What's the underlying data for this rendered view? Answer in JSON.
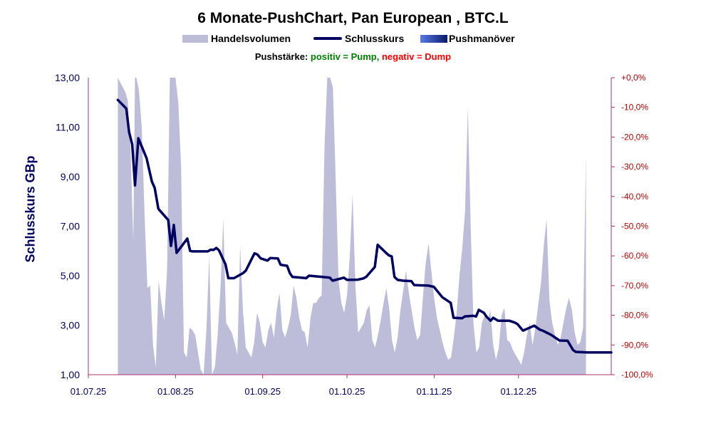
{
  "chart_data": {
    "type": "line",
    "title": "6 Monate-PushChart, Pan European , BTC.L",
    "legend": {
      "volume": "Handelsvolumen",
      "close": "Schlusskurs",
      "push": "Pushmanöver"
    },
    "push_note": {
      "label": "Pushstärke:",
      "positive": "positiv = Pump,",
      "negative": "negativ = Dump"
    },
    "ylabel": "Schlusskurs GBp",
    "ylim": [
      1,
      13
    ],
    "y_ticks": [
      "13,00",
      "11,00",
      "9,00",
      "7,00",
      "5,00",
      "3,00",
      "1,00"
    ],
    "y2lim": [
      -100,
      0
    ],
    "y2_ticks": [
      "+0,0%",
      "-10,0%",
      "-20,0%",
      "-30,0%",
      "-40,0%",
      "-50,0%",
      "-60,0%",
      "-70,0%",
      "-80,0%",
      "-90,0%",
      "-100,0%"
    ],
    "x_ticks": [
      "01.07.25",
      "01.08.25",
      "01.09.25",
      "01.10.25",
      "01.11.25",
      "01.12.25"
    ],
    "x_tick_days": [
      0,
      31,
      62,
      92,
      123,
      153
    ],
    "x_range_days": [
      0,
      186
    ],
    "series": [
      {
        "name": "Schlusskurs",
        "x_days": [
          10.5,
          13.5,
          14.5,
          15.6,
          16.6,
          17.8,
          20.7,
          22.6,
          23.6,
          24.9,
          28.4,
          29.4,
          30.4,
          31.4,
          35.2,
          36.2,
          37.2,
          42.5,
          43.5,
          44.5,
          45.5,
          46.5,
          48.8,
          49.8,
          51.8,
          55,
          56,
          59.1,
          60.1,
          61.3,
          63.7,
          64.7,
          67.4,
          68.4,
          70.7,
          71.7,
          72.6,
          75.6,
          77.5,
          78.5,
          85.9,
          86.9,
          90.9,
          92,
          95.9,
          97.9,
          98.9,
          101.9,
          102.9,
          105.9,
          106.9,
          107.9,
          108.9,
          110,
          111.9,
          114.9,
          115.9,
          120.8,
          122.9,
          125.9,
          128.9,
          129.9,
          132.9,
          133.9,
          136.9,
          137.9,
          138.9,
          140.7,
          141.7,
          143.1,
          144,
          145.7,
          149.7,
          151.6,
          152.6,
          154.6,
          158.6,
          160.6,
          161.6,
          164.6,
          167.6,
          170.5,
          172.4,
          173.4,
          177.7,
          186
        ],
        "values": [
          12.1,
          11.75,
          10.8,
          10.3,
          8.65,
          10.55,
          9.75,
          8.8,
          8.55,
          7.7,
          7.25,
          6.2,
          7.05,
          5.92,
          6.5,
          6.0,
          5.98,
          5.98,
          6.05,
          6.04,
          6.12,
          6.02,
          5.45,
          4.9,
          4.9,
          5.1,
          5.2,
          5.9,
          5.86,
          5.7,
          5.61,
          5.71,
          5.7,
          5.44,
          5.4,
          5.1,
          4.95,
          4.92,
          4.9,
          5.0,
          4.92,
          4.8,
          4.92,
          4.83,
          4.84,
          4.89,
          4.96,
          5.35,
          6.25,
          5.92,
          5.82,
          5.78,
          4.95,
          4.83,
          4.8,
          4.78,
          4.62,
          4.6,
          4.55,
          4.13,
          3.9,
          3.3,
          3.28,
          3.35,
          3.38,
          3.35,
          3.62,
          3.5,
          3.33,
          3.18,
          3.3,
          3.18,
          3.18,
          3.11,
          3.05,
          2.78,
          2.98,
          2.82,
          2.78,
          2.61,
          2.38,
          2.37,
          2.0,
          1.92,
          1.9,
          1.9
        ]
      },
      {
        "name": "Handelsvolumen",
        "x_days": [
          10.5,
          13.2,
          14,
          15,
          16,
          16.6,
          17.1,
          18,
          19,
          20,
          21,
          22,
          23,
          24,
          25,
          26,
          27,
          28,
          29,
          30,
          31,
          32,
          33,
          34,
          35,
          36,
          37,
          38,
          39,
          40,
          41,
          42,
          43,
          44,
          45,
          46,
          47,
          48,
          49,
          50,
          51,
          52,
          53,
          54,
          55,
          56,
          57,
          58,
          59,
          60,
          61,
          62,
          63,
          64,
          65,
          66,
          67,
          68,
          69,
          70,
          71,
          72,
          73,
          74,
          75,
          76,
          77,
          78,
          79,
          80,
          81,
          82,
          83,
          84,
          85,
          86,
          87,
          88,
          89,
          90,
          91,
          92,
          93,
          94,
          95,
          96,
          97,
          98,
          99,
          100,
          101,
          102,
          103,
          104,
          105,
          106,
          107,
          108,
          109,
          110,
          111,
          112,
          113,
          114,
          115,
          116,
          117,
          118,
          119,
          120,
          121,
          122,
          123,
          124,
          125,
          126,
          127,
          128,
          129,
          130,
          131,
          132,
          133,
          134,
          135,
          136,
          137,
          138,
          139,
          140,
          141,
          142,
          143,
          144,
          145,
          146,
          147,
          148,
          149,
          150,
          151,
          152,
          153,
          154,
          155,
          156,
          157,
          158,
          159,
          160,
          161,
          162,
          163,
          164,
          165,
          166,
          167,
          168,
          169,
          170,
          171,
          172,
          173,
          174,
          175,
          176,
          177
        ],
        "values": [
          13,
          12.4,
          12.1,
          10.2,
          6.4,
          13,
          13,
          12.5,
          11,
          7.5,
          4.5,
          4.6,
          2.2,
          1.3,
          4.8,
          3.9,
          3.2,
          5.2,
          13,
          13,
          13,
          12,
          9.4,
          1.9,
          1.7,
          2.9,
          2.8,
          2.6,
          1.9,
          1.2,
          1,
          2.8,
          5.8,
          1,
          1.3,
          2.6,
          4.5,
          7.3,
          3.1,
          2.9,
          2.7,
          2.3,
          1.8,
          6.2,
          3.6,
          2.1,
          1.9,
          1.7,
          2.3,
          3.5,
          3.1,
          2.3,
          2.1,
          2.8,
          3.1,
          2.5,
          3.6,
          4.3,
          2.8,
          2.5,
          2.9,
          3.4,
          4.6,
          4.1,
          3.3,
          2.8,
          2.7,
          2.1,
          3.3,
          3.9,
          3.9,
          4.1,
          4.2,
          10.2,
          13,
          13,
          12.6,
          8.8,
          4.8,
          3.9,
          3.5,
          4.2,
          5.8,
          8.3,
          4.6,
          2.7,
          2.9,
          3.1,
          3.6,
          3.8,
          2.4,
          2.1,
          2.6,
          3.2,
          3.9,
          4.5,
          3.7,
          2.4,
          1.9,
          2.5,
          3.6,
          4.4,
          5.2,
          4.3,
          3.6,
          2.9,
          2.4,
          2.6,
          4.1,
          5.5,
          6.3,
          5.2,
          4.1,
          3.3,
          2.8,
          2.3,
          1.9,
          1.6,
          1.7,
          2.5,
          3.5,
          5,
          6.1,
          7.6,
          11.8,
          7,
          3.1,
          1.9,
          2.1,
          3.1,
          3.4,
          3.2,
          3.6,
          2.2,
          1.6,
          2.1,
          3.4,
          3.7,
          2.4,
          2.3,
          2,
          1.8,
          1.6,
          1.4,
          1.9,
          2.6,
          3.1,
          2.2,
          2.9,
          3.8,
          4.7,
          6.2,
          7.3,
          4,
          3.1,
          2.6,
          2.2,
          2.5,
          3.1,
          3.7,
          4.1,
          3.6,
          2.7,
          2.2,
          2.3,
          2.9,
          9.9
        ]
      }
    ],
    "colors": {
      "line": "#000060",
      "volume": "#bdbdd9",
      "left_axis": "#000060",
      "right_axis": "#c00000",
      "plot_border": "#b03070"
    }
  }
}
